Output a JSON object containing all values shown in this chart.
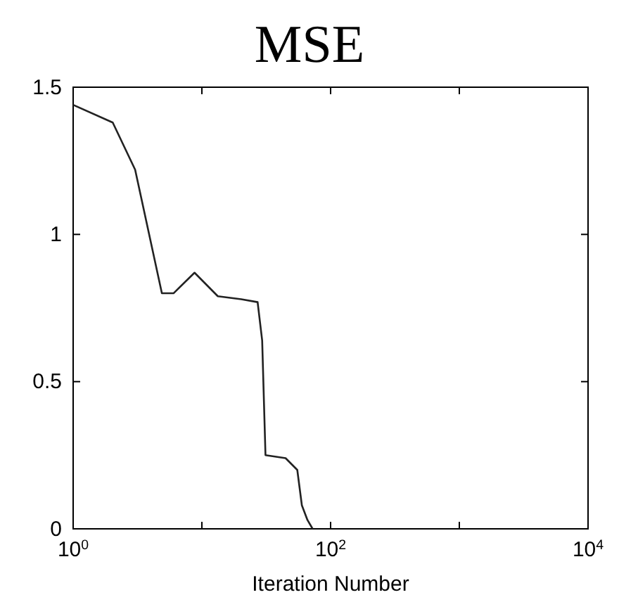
{
  "chart_data": {
    "type": "line",
    "title": "MSE",
    "xlabel": "Iteration Number",
    "log": "x",
    "x": [
      1,
      2.03,
      3.03,
      4.89,
      6.02,
      8.77,
      13.3,
      20.2,
      27.1,
      29.4,
      31.2,
      44.7,
      55.1,
      59.8,
      66.1,
      72.5
    ],
    "series": [
      {
        "color": "#222222",
        "values": [
          1.44,
          1.38,
          1.22,
          0.8,
          0.8,
          0.87,
          0.79,
          0.78,
          0.77,
          0.64,
          0.25,
          0.24,
          0.2,
          0.08,
          0.03,
          0
        ]
      }
    ],
    "xlim": [
      1,
      10000
    ],
    "xticks": [
      {
        "value": 1,
        "label": "10$^{0}$"
      },
      {
        "value": 10,
        "label": null
      },
      {
        "value": 100,
        "label": "10$^{2}$"
      },
      {
        "value": 1000,
        "label": null
      },
      {
        "value": 10000,
        "label": "10$^{4}$"
      }
    ],
    "ylim": [
      0,
      1.5
    ],
    "yticks": [
      0,
      0.5,
      1,
      1.5
    ],
    "grid": false,
    "marker": "none",
    "line_style": "solid"
  }
}
